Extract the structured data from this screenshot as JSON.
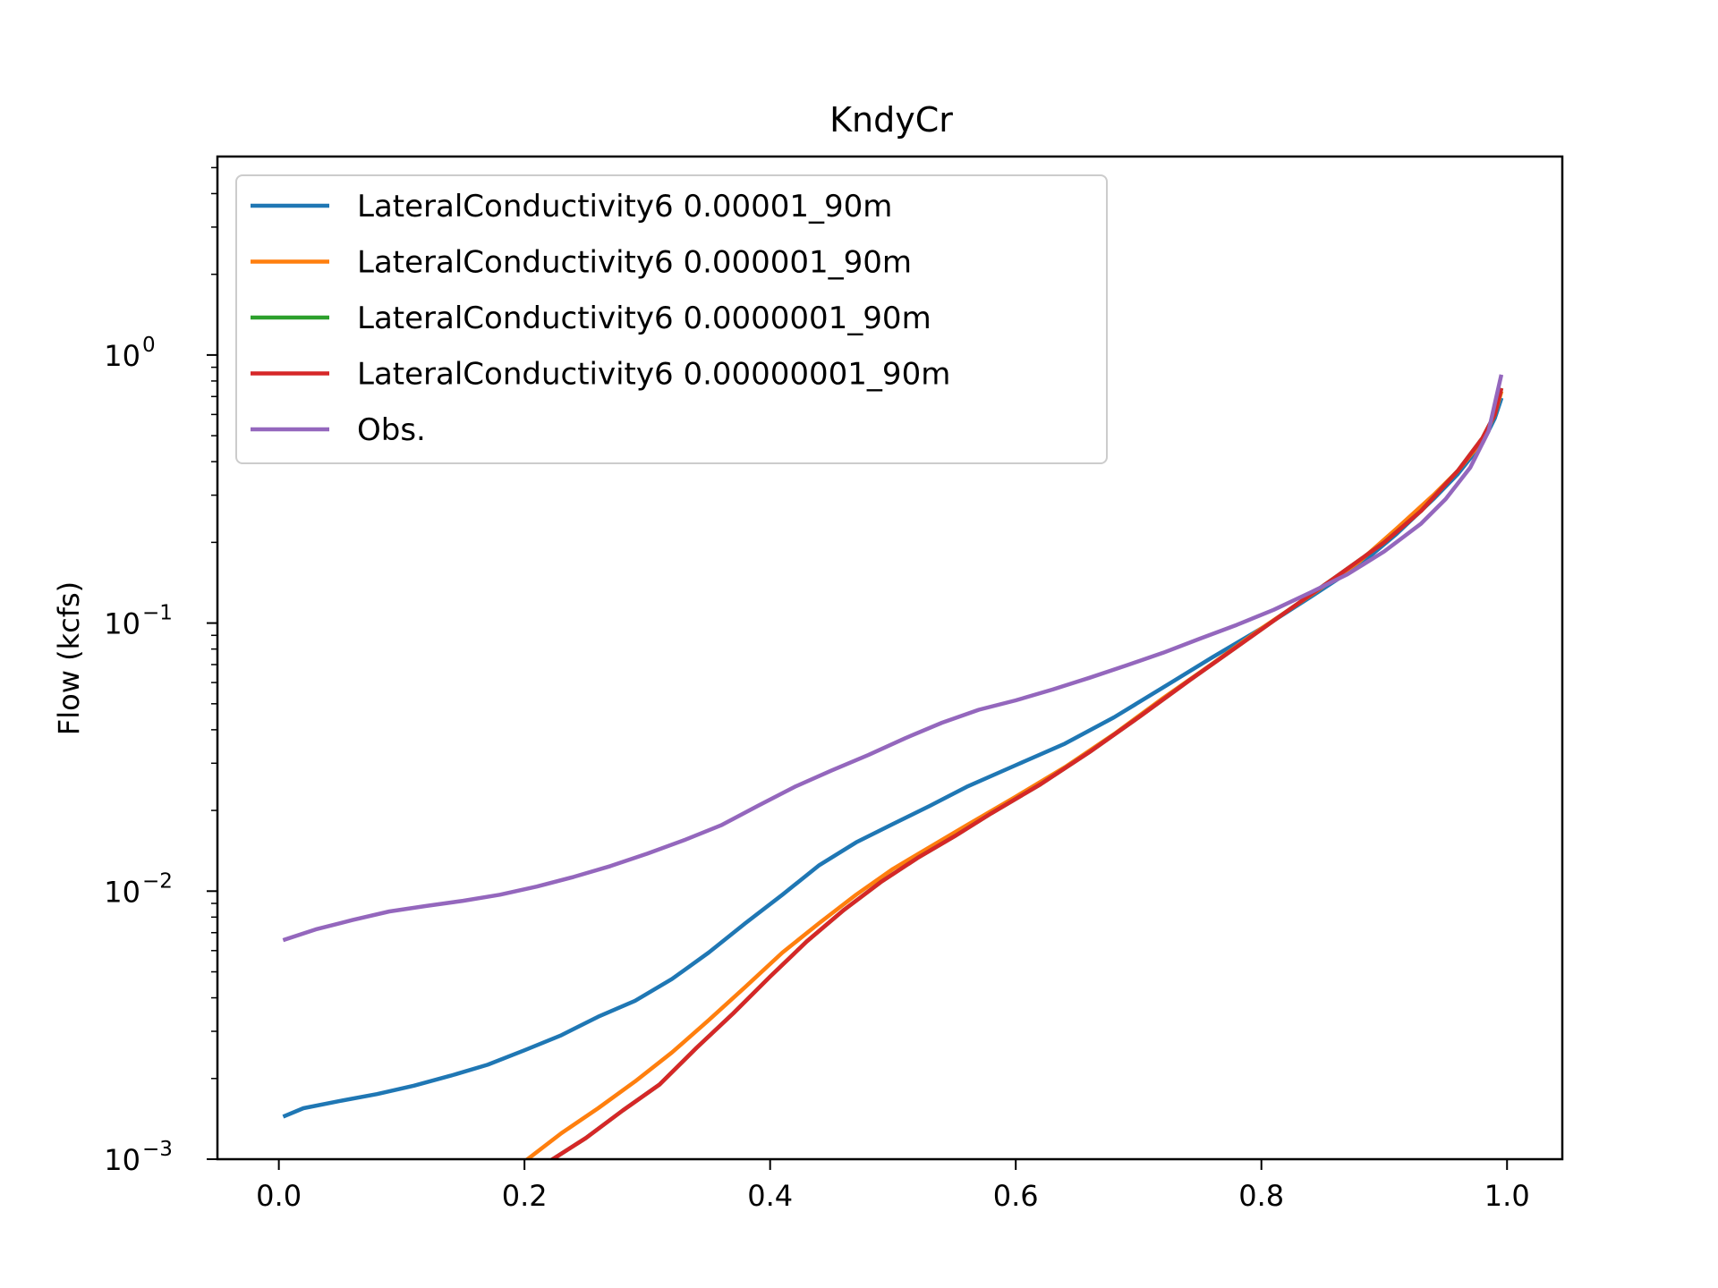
{
  "chart_data": {
    "type": "line",
    "title": "KndyCr",
    "xlabel": "",
    "ylabel": "Flow (kcfs)",
    "xlim": [
      -0.05,
      1.045
    ],
    "ylim": [
      0.001,
      5.5
    ],
    "yscale": "log",
    "grid": false,
    "legend_position": "upper-left",
    "x_ticks": [
      {
        "value": 0.0,
        "label": "0.0"
      },
      {
        "value": 0.2,
        "label": "0.2"
      },
      {
        "value": 0.4,
        "label": "0.4"
      },
      {
        "value": 0.6,
        "label": "0.6"
      },
      {
        "value": 0.8,
        "label": "0.8"
      },
      {
        "value": 1.0,
        "label": "1.0"
      }
    ],
    "y_ticks": [
      {
        "value": 1,
        "base": "10",
        "exp": "0"
      },
      {
        "value": 0.1,
        "base": "10",
        "exp": "−1"
      },
      {
        "value": 0.01,
        "base": "10",
        "exp": "−2"
      },
      {
        "value": 0.001,
        "base": "10",
        "exp": "−3"
      }
    ],
    "series": [
      {
        "name": "LateralConductivity6 0.00001_90m",
        "color": "#1f77b4",
        "points": [
          [
            0.005,
            0.00145
          ],
          [
            0.02,
            0.00155
          ],
          [
            0.05,
            0.00165
          ],
          [
            0.08,
            0.00175
          ],
          [
            0.11,
            0.00188
          ],
          [
            0.14,
            0.00205
          ],
          [
            0.17,
            0.00225
          ],
          [
            0.2,
            0.00255
          ],
          [
            0.23,
            0.0029
          ],
          [
            0.26,
            0.0034
          ],
          [
            0.29,
            0.0039
          ],
          [
            0.32,
            0.0047
          ],
          [
            0.35,
            0.0059
          ],
          [
            0.38,
            0.0076
          ],
          [
            0.41,
            0.0097
          ],
          [
            0.44,
            0.0125
          ],
          [
            0.47,
            0.0152
          ],
          [
            0.5,
            0.0178
          ],
          [
            0.53,
            0.0208
          ],
          [
            0.56,
            0.0245
          ],
          [
            0.6,
            0.0295
          ],
          [
            0.64,
            0.0355
          ],
          [
            0.68,
            0.0445
          ],
          [
            0.72,
            0.0575
          ],
          [
            0.76,
            0.0745
          ],
          [
            0.8,
            0.0955
          ],
          [
            0.84,
            0.125
          ],
          [
            0.88,
            0.165
          ],
          [
            0.91,
            0.215
          ],
          [
            0.94,
            0.29
          ],
          [
            0.96,
            0.36
          ],
          [
            0.98,
            0.47
          ],
          [
            0.99,
            0.58
          ],
          [
            0.995,
            0.68
          ]
        ]
      },
      {
        "name": "LateralConductivity6 0.000001_90m",
        "color": "#ff7f0e",
        "points": [
          [
            0.2,
            0.00098
          ],
          [
            0.23,
            0.00125
          ],
          [
            0.26,
            0.00155
          ],
          [
            0.29,
            0.00195
          ],
          [
            0.32,
            0.0025
          ],
          [
            0.35,
            0.0033
          ],
          [
            0.38,
            0.0044
          ],
          [
            0.41,
            0.0059
          ],
          [
            0.44,
            0.0076
          ],
          [
            0.47,
            0.0097
          ],
          [
            0.5,
            0.0121
          ],
          [
            0.53,
            0.0146
          ],
          [
            0.56,
            0.0176
          ],
          [
            0.6,
            0.0225
          ],
          [
            0.64,
            0.029
          ],
          [
            0.68,
            0.0385
          ],
          [
            0.72,
            0.0525
          ],
          [
            0.76,
            0.0705
          ],
          [
            0.8,
            0.0955
          ],
          [
            0.84,
            0.127
          ],
          [
            0.88,
            0.17
          ],
          [
            0.91,
            0.225
          ],
          [
            0.94,
            0.3
          ],
          [
            0.96,
            0.37
          ],
          [
            0.98,
            0.48
          ],
          [
            0.99,
            0.6
          ],
          [
            0.995,
            0.72
          ]
        ]
      },
      {
        "name": "LateralConductivity6 0.0000001_90m",
        "color": "#2ca02c",
        "points": [
          [
            0.22,
            0.00098
          ],
          [
            0.25,
            0.0012
          ],
          [
            0.28,
            0.00152
          ],
          [
            0.31,
            0.0019
          ],
          [
            0.34,
            0.0026
          ],
          [
            0.37,
            0.0035
          ],
          [
            0.4,
            0.0048
          ],
          [
            0.43,
            0.0065
          ],
          [
            0.46,
            0.0085
          ],
          [
            0.49,
            0.0108
          ],
          [
            0.52,
            0.0133
          ],
          [
            0.55,
            0.016
          ],
          [
            0.58,
            0.0195
          ],
          [
            0.62,
            0.025
          ],
          [
            0.66,
            0.033
          ],
          [
            0.7,
            0.0445
          ],
          [
            0.74,
            0.0605
          ],
          [
            0.78,
            0.0815
          ],
          [
            0.82,
            0.11
          ],
          [
            0.86,
            0.148
          ],
          [
            0.9,
            0.2
          ],
          [
            0.93,
            0.262
          ],
          [
            0.96,
            0.37
          ],
          [
            0.98,
            0.49
          ],
          [
            0.99,
            0.6
          ],
          [
            0.995,
            0.74
          ]
        ]
      },
      {
        "name": "LateralConductivity6 0.00000001_90m",
        "color": "#d62728",
        "points": [
          [
            0.22,
            0.00098
          ],
          [
            0.25,
            0.0012
          ],
          [
            0.28,
            0.00152
          ],
          [
            0.31,
            0.0019
          ],
          [
            0.34,
            0.0026
          ],
          [
            0.37,
            0.0035
          ],
          [
            0.4,
            0.0048
          ],
          [
            0.43,
            0.0065
          ],
          [
            0.46,
            0.0085
          ],
          [
            0.49,
            0.0108
          ],
          [
            0.52,
            0.0133
          ],
          [
            0.55,
            0.016
          ],
          [
            0.58,
            0.0195
          ],
          [
            0.62,
            0.025
          ],
          [
            0.66,
            0.033
          ],
          [
            0.7,
            0.0445
          ],
          [
            0.74,
            0.0605
          ],
          [
            0.78,
            0.0815
          ],
          [
            0.82,
            0.11
          ],
          [
            0.86,
            0.148
          ],
          [
            0.9,
            0.2
          ],
          [
            0.93,
            0.262
          ],
          [
            0.96,
            0.37
          ],
          [
            0.98,
            0.49
          ],
          [
            0.99,
            0.6
          ],
          [
            0.995,
            0.74
          ]
        ]
      },
      {
        "name": "Obs.",
        "color": "#9467bd",
        "points": [
          [
            0.005,
            0.0066
          ],
          [
            0.03,
            0.0072
          ],
          [
            0.06,
            0.0078
          ],
          [
            0.09,
            0.0084
          ],
          [
            0.12,
            0.0088
          ],
          [
            0.15,
            0.0092
          ],
          [
            0.18,
            0.0097
          ],
          [
            0.21,
            0.0104
          ],
          [
            0.24,
            0.0113
          ],
          [
            0.27,
            0.0124
          ],
          [
            0.3,
            0.0138
          ],
          [
            0.33,
            0.0155
          ],
          [
            0.36,
            0.0176
          ],
          [
            0.39,
            0.0208
          ],
          [
            0.42,
            0.0245
          ],
          [
            0.45,
            0.0282
          ],
          [
            0.48,
            0.0322
          ],
          [
            0.51,
            0.0372
          ],
          [
            0.54,
            0.0425
          ],
          [
            0.57,
            0.0475
          ],
          [
            0.6,
            0.0515
          ],
          [
            0.63,
            0.0565
          ],
          [
            0.66,
            0.0625
          ],
          [
            0.69,
            0.0695
          ],
          [
            0.72,
            0.0775
          ],
          [
            0.75,
            0.0875
          ],
          [
            0.78,
            0.0985
          ],
          [
            0.81,
            0.112
          ],
          [
            0.84,
            0.13
          ],
          [
            0.87,
            0.152
          ],
          [
            0.9,
            0.185
          ],
          [
            0.93,
            0.235
          ],
          [
            0.95,
            0.29
          ],
          [
            0.97,
            0.38
          ],
          [
            0.985,
            0.52
          ],
          [
            0.995,
            0.83
          ]
        ]
      }
    ]
  }
}
